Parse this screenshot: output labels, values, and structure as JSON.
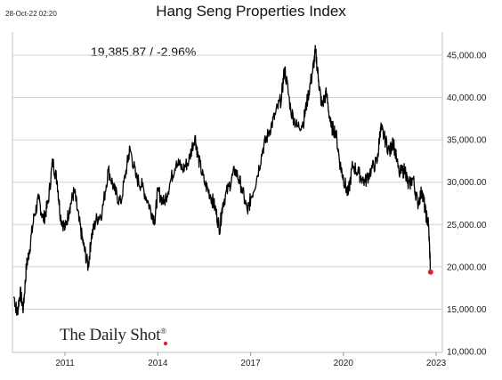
{
  "header": {
    "timestamp": "28-Oct-22 02:20",
    "title": "Hang Seng Properties Index",
    "readout": "19,385.87  /  -2.96%"
  },
  "brand": {
    "name": "The Daily Shot",
    "mark": "®"
  },
  "colors": {
    "line": "#000000",
    "grid": "#d0d0d0",
    "marker": "#e8202a"
  },
  "chart_data": {
    "type": "line",
    "title": "Hang Seng Properties Index",
    "xlabel": "",
    "ylabel": "",
    "xlim": [
      2009.3,
      2023.2
    ],
    "ylim": [
      10000,
      47000
    ],
    "x_ticks": [
      2011,
      2014,
      2017,
      2020,
      2023
    ],
    "x_tick_labels": [
      "2011",
      "2014",
      "2017",
      "2020",
      "2023"
    ],
    "y_ticks": [
      10000,
      15000,
      20000,
      25000,
      30000,
      35000,
      40000,
      45000
    ],
    "y_tick_labels": [
      "10,000.00",
      "15,000.00",
      "20,000.00",
      "25,000.00",
      "30,000.00",
      "35,000.00",
      "40,000.00",
      "45,000.00"
    ],
    "grid": "horizontal",
    "last_point": {
      "x": 2022.82,
      "y": 19385.87
    },
    "series": [
      {
        "x": [
          2009.35,
          2009.45,
          2009.55,
          2009.65,
          2009.75,
          2009.85,
          2010.0,
          2010.15,
          2010.3,
          2010.45,
          2010.6,
          2010.75,
          2010.85,
          2011.0,
          2011.15,
          2011.3,
          2011.45,
          2011.6,
          2011.75,
          2011.85,
          2012.0,
          2012.2,
          2012.4,
          2012.6,
          2012.8,
          2013.0,
          2013.1,
          2013.3,
          2013.5,
          2013.7,
          2013.9,
          2014.0,
          2014.2,
          2014.4,
          2014.6,
          2014.8,
          2015.0,
          2015.2,
          2015.3,
          2015.5,
          2015.7,
          2015.85,
          2016.0,
          2016.1,
          2016.3,
          2016.5,
          2016.7,
          2016.9,
          2017.0,
          2017.2,
          2017.4,
          2017.6,
          2017.8,
          2018.0,
          2018.1,
          2018.3,
          2018.5,
          2018.7,
          2018.85,
          2019.0,
          2019.1,
          2019.2,
          2019.3,
          2019.45,
          2019.6,
          2019.75,
          2019.9,
          2020.0,
          2020.15,
          2020.3,
          2020.5,
          2020.7,
          2020.9,
          2021.1,
          2021.2,
          2021.3,
          2021.5,
          2021.6,
          2021.8,
          2022.0,
          2022.1,
          2022.25,
          2022.4,
          2022.55,
          2022.65,
          2022.75,
          2022.82
        ],
        "y": [
          16500,
          14500,
          17000,
          15000,
          20000,
          22000,
          26000,
          28000,
          25500,
          27500,
          32500,
          30000,
          26000,
          24500,
          27000,
          29000,
          25500,
          22500,
          20000,
          23500,
          25500,
          26500,
          31500,
          29000,
          27500,
          32000,
          34000,
          30500,
          29500,
          27500,
          25500,
          29000,
          27500,
          30000,
          32500,
          31500,
          32500,
          35500,
          33000,
          30000,
          28500,
          27000,
          24500,
          27500,
          29500,
          31500,
          29500,
          26500,
          28000,
          30500,
          34000,
          36000,
          38000,
          40000,
          43500,
          38500,
          36500,
          37000,
          40000,
          43000,
          45500,
          42000,
          39000,
          40500,
          36500,
          36000,
          32000,
          30500,
          28500,
          32000,
          31000,
          30000,
          31500,
          32500,
          36500,
          35500,
          33500,
          35000,
          31000,
          31500,
          29500,
          30500,
          27500,
          29000,
          26500,
          25000,
          19385.87
        ]
      }
    ]
  }
}
